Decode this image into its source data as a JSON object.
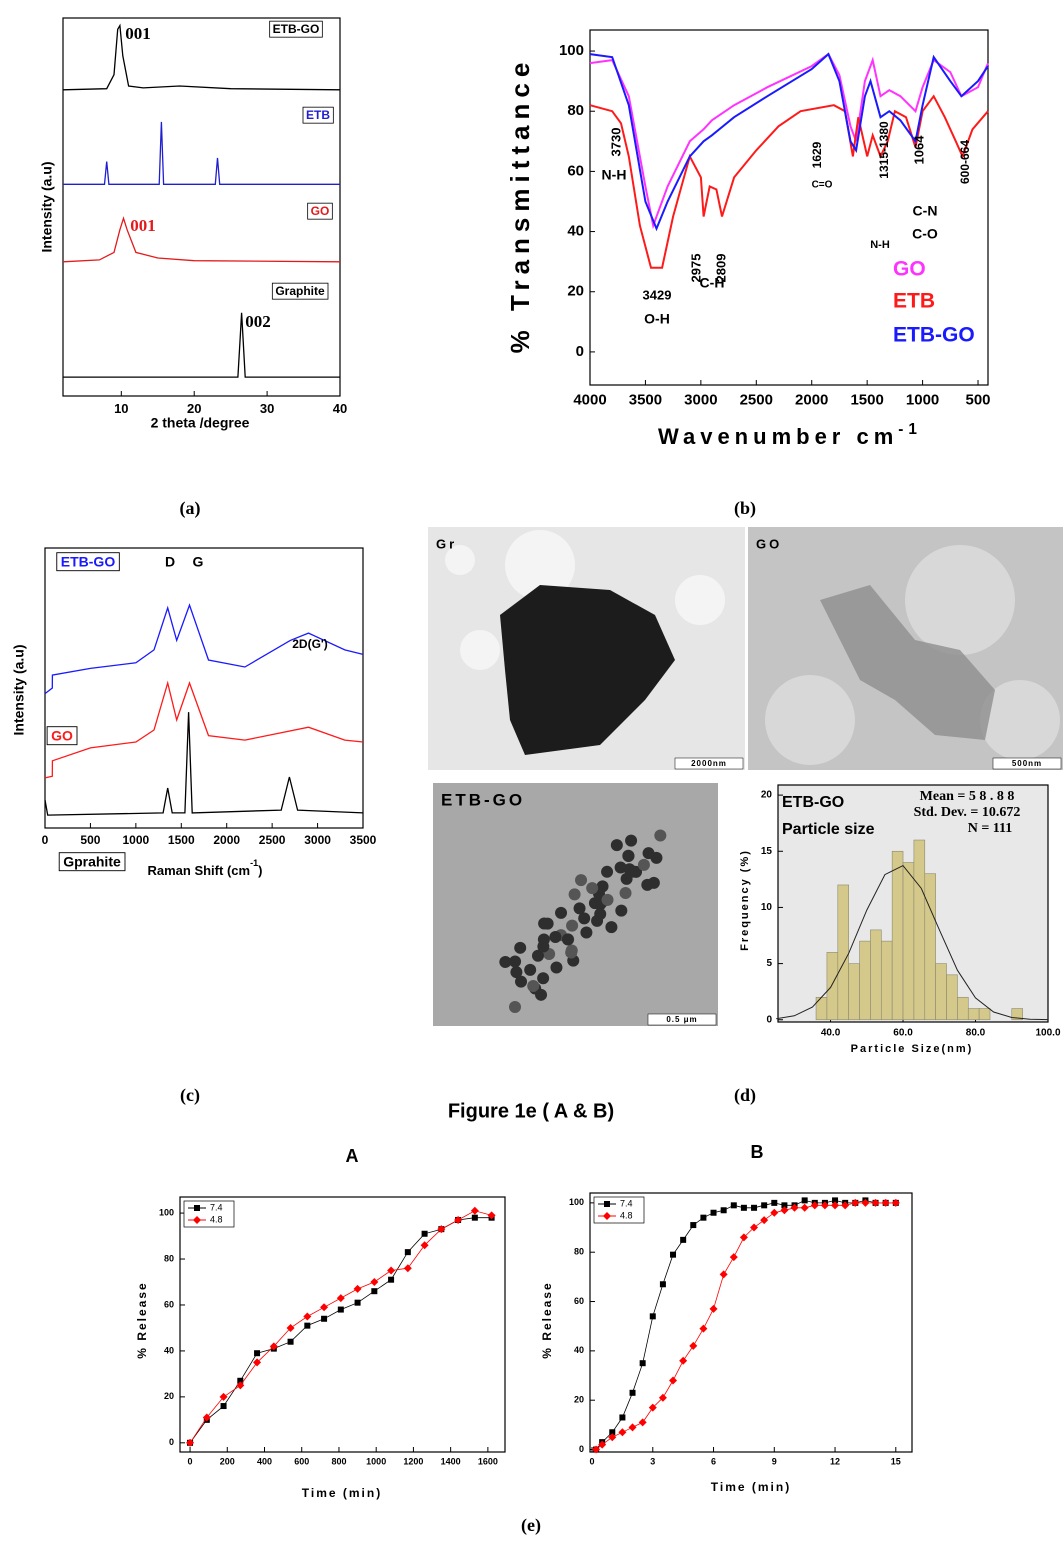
{
  "chart_data": [
    {
      "type": "line",
      "x_label": "2 theta /degree",
      "y_label": "Intensity (a.u)",
      "xlim": [
        2,
        40
      ],
      "ylim": [
        0,
        100
      ],
      "xticks": [
        10,
        20,
        30,
        40
      ],
      "series": [
        {
          "name": "ETB-GO",
          "color": "#000000",
          "x": [
            2,
            8,
            9,
            9.5,
            9.8,
            10.2,
            11,
            13,
            18,
            25,
            40
          ],
          "values": [
            81,
            81.3,
            85,
            97,
            98,
            90,
            82,
            81.5,
            82,
            81.3,
            81
          ]
        },
        {
          "name": "ETB",
          "color": "#1f1fd0",
          "x": [
            2,
            7.7,
            8,
            8.3,
            15.2,
            15.5,
            15.8,
            22.9,
            23.2,
            23.5,
            40
          ],
          "values": [
            56,
            56,
            62,
            56,
            56,
            72.5,
            56,
            56,
            63,
            56,
            56
          ]
        },
        {
          "name": "GO",
          "color": "#e31a1c",
          "x": [
            2,
            7,
            9,
            9.8,
            10.3,
            10.8,
            12,
            15,
            20,
            40
          ],
          "values": [
            35.5,
            36,
            38,
            44,
            47,
            44,
            38,
            36.5,
            35.8,
            35.5
          ]
        },
        {
          "name": "Graphite",
          "color": "#000000",
          "x": [
            2,
            26,
            26.3,
            26.5,
            26.7,
            27,
            40
          ],
          "values": [
            5,
            5,
            15,
            22,
            15,
            5,
            5
          ]
        }
      ],
      "annotations": [
        {
          "text": "001",
          "color": "#000000"
        },
        {
          "text": "001",
          "color": "#e31a1c"
        },
        {
          "text": "002",
          "color": "#000000"
        }
      ]
    },
    {
      "type": "line",
      "x_label": {
        "text": "Wavenumber cm",
        "sup": "-1"
      },
      "y_label": "% Transmittance",
      "xlim": [
        4000,
        410
      ],
      "ylim": [
        -11,
        107
      ],
      "xticks": [
        4000,
        3500,
        3000,
        2500,
        2000,
        1500,
        1000,
        500
      ],
      "yticks": [
        0,
        20,
        40,
        60,
        80,
        100
      ],
      "legend": "lower right",
      "series": [
        {
          "name": "GO",
          "color": "#ff33ff",
          "x": [
            4000,
            3800,
            3650,
            3500,
            3430,
            3300,
            3100,
            2975,
            2900,
            2700,
            2400,
            2000,
            1850,
            1750,
            1650,
            1600,
            1520,
            1450,
            1380,
            1300,
            1200,
            1064,
            1000,
            900,
            750,
            650,
            500,
            410
          ],
          "values": [
            96,
            97,
            85,
            55,
            42,
            55,
            70,
            74,
            77,
            82,
            88,
            95,
            99,
            92,
            75,
            70,
            90,
            97,
            85,
            87,
            85,
            80,
            88,
            97,
            93,
            85,
            88,
            96
          ]
        },
        {
          "name": "ETB",
          "color": "#ff1a1a",
          "x": [
            4000,
            3800,
            3720,
            3650,
            3550,
            3450,
            3350,
            3250,
            3100,
            3000,
            2975,
            2920,
            2860,
            2809,
            2700,
            2500,
            2300,
            2100,
            1800,
            1700,
            1629,
            1580,
            1500,
            1450,
            1380,
            1315,
            1250,
            1150,
            1064,
            1000,
            900,
            800,
            700,
            640,
            550,
            410
          ],
          "values": [
            82,
            80,
            76,
            65,
            42,
            28,
            28,
            45,
            65,
            58,
            45,
            55,
            54,
            45,
            58,
            67,
            75,
            80,
            82,
            80,
            65,
            78,
            65,
            72,
            65,
            70,
            80,
            78,
            68,
            80,
            85,
            78,
            70,
            65,
            74,
            80
          ]
        },
        {
          "name": "ETB-GO",
          "color": "#1a1aff",
          "x": [
            4000,
            3800,
            3650,
            3500,
            3400,
            3300,
            3100,
            2975,
            2900,
            2700,
            2400,
            2000,
            1850,
            1750,
            1650,
            1600,
            1520,
            1470,
            1380,
            1300,
            1200,
            1064,
            1000,
            900,
            750,
            650,
            500,
            410
          ],
          "values": [
            99,
            98,
            82,
            50,
            41,
            50,
            65,
            70,
            72,
            78,
            85,
            94,
            99,
            90,
            70,
            67,
            85,
            90,
            78,
            80,
            77,
            70,
            82,
            98,
            90,
            85,
            90,
            95
          ]
        }
      ],
      "annotations": [
        {
          "text": "3730"
        },
        {
          "text": "N-H"
        },
        {
          "text": "3429"
        },
        {
          "text": "O-H"
        },
        {
          "text": "2975"
        },
        {
          "text": "2809"
        },
        {
          "text": "C-H"
        },
        {
          "text": "1629"
        },
        {
          "text": "C=O"
        },
        {
          "text": "1315-1380"
        },
        {
          "text": "N-H"
        },
        {
          "text": "1064"
        },
        {
          "text": "C-N"
        },
        {
          "text": "C-O"
        },
        {
          "text": "600-664"
        }
      ]
    },
    {
      "type": "line",
      "x_label": {
        "text": "Raman Shift (cm",
        "sup": "-1",
        "tail": ")"
      },
      "y_label": "Intensity (a.u)",
      "xlim": [
        0,
        3500
      ],
      "ylim": [
        0,
        100
      ],
      "xticks": [
        0,
        500,
        1000,
        1500,
        2000,
        2500,
        3000,
        3500
      ],
      "series": [
        {
          "name": "ETB-GO",
          "color": "#1a1aff",
          "x": [
            0,
            80,
            81,
            500,
            1000,
            1200,
            1350,
            1450,
            1590,
            1800,
            2200,
            2700,
            2900,
            3300,
            3500
          ],
          "values": [
            48,
            50,
            54.6,
            57,
            59,
            63.6,
            78.6,
            67,
            79.6,
            60,
            57.5,
            67,
            69.6,
            63.6,
            62
          ]
        },
        {
          "name": "GO",
          "color": "#ff1a1a",
          "x": [
            0,
            80,
            81,
            500,
            1000,
            1200,
            1350,
            1450,
            1590,
            1800,
            2200,
            2900,
            3300,
            3500
          ],
          "values": [
            17.9,
            18.5,
            24,
            28.6,
            30.7,
            35,
            51.8,
            38.6,
            51.8,
            33,
            31.4,
            36,
            31.4,
            30.7
          ]
        },
        {
          "name": "Gprahite",
          "color": "#000000",
          "x": [
            0,
            30,
            1300,
            1350,
            1400,
            1540,
            1580,
            1620,
            2600,
            2690,
            2780,
            3500
          ],
          "values": [
            10,
            4.6,
            5.4,
            14.3,
            5.4,
            5.4,
            41.4,
            5.4,
            6.4,
            18.2,
            6.4,
            5.4
          ]
        }
      ],
      "annotations": [
        {
          "text": "D"
        },
        {
          "text": "G"
        },
        {
          "text": "2D(G')"
        }
      ]
    },
    {
      "type": "histogram",
      "title": "ETB-GO",
      "subtitle": "Particle size",
      "x_label": "Particle Size(nm)",
      "y_label": "Frequency (%)",
      "stats": [
        "Mean = 5 8 . 8 8",
        "Std. Dev. = 10.672",
        "N = 111"
      ],
      "xlim": [
        25.5,
        100
      ],
      "ylim": [
        -0.2,
        20.9
      ],
      "xticks": [
        {
          "value": 40,
          "label": "40.0"
        },
        {
          "value": 60,
          "label": "60.0"
        },
        {
          "value": 80,
          "label": "80.0"
        },
        {
          "value": 100,
          "label": "100.0"
        }
      ],
      "yticks": [
        0,
        5,
        10,
        15,
        20
      ],
      "color": "#d4c88a",
      "bins": [
        36,
        39,
        42,
        45,
        48,
        51,
        54,
        57,
        60,
        63,
        66,
        69,
        72,
        75,
        78,
        81,
        84,
        87,
        90,
        93
      ],
      "counts": [
        2,
        6,
        12,
        5,
        7,
        8,
        7,
        15,
        14,
        16,
        13,
        5,
        4,
        2,
        1,
        1,
        0,
        0,
        1
      ],
      "fit": {
        "x": [
          25,
          30,
          35,
          40,
          45,
          50,
          55,
          60,
          65,
          70,
          75,
          80,
          85,
          90,
          95,
          100
        ],
        "values": [
          0.09,
          0.35,
          1.13,
          2.88,
          5.92,
          9.76,
          12.92,
          13.72,
          11.71,
          8.02,
          4.41,
          1.95,
          0.69,
          0.2,
          0.05,
          0.01
        ]
      }
    },
    {
      "type": "line",
      "title": "A",
      "x_label": "Time (min)",
      "y_label": "% Release",
      "xlim": [
        -54,
        1692
      ],
      "ylim": [
        -4,
        107
      ],
      "xticks": [
        0,
        200,
        400,
        600,
        800,
        1000,
        1200,
        1400,
        1600
      ],
      "yticks": [
        0,
        20,
        40,
        60,
        80,
        100
      ],
      "legend": "upper left",
      "series": [
        {
          "name": "7.4",
          "color": "#000000",
          "marker": "square",
          "x": [
            0,
            90,
            180,
            270,
            360,
            450,
            540,
            630,
            720,
            810,
            900,
            990,
            1080,
            1170,
            1260,
            1350,
            1440,
            1530,
            1620
          ],
          "values": [
            0,
            10,
            16,
            27,
            39,
            41,
            44,
            51,
            54,
            58,
            61,
            66,
            71,
            83,
            91,
            93,
            97,
            98,
            98
          ]
        },
        {
          "name": "4.8",
          "color": "#ff0000",
          "marker": "diamond",
          "x": [
            0,
            90,
            180,
            270,
            360,
            450,
            540,
            630,
            720,
            810,
            900,
            990,
            1080,
            1170,
            1260,
            1350,
            1440,
            1530,
            1620
          ],
          "values": [
            0,
            11,
            20,
            25,
            35,
            42,
            50,
            55,
            59,
            63,
            67,
            70,
            75,
            76,
            86,
            93,
            97,
            101,
            99
          ]
        }
      ]
    },
    {
      "type": "line",
      "title": "B",
      "x_label": "Time (min)",
      "y_label": "% Release",
      "xlim": [
        -0.1,
        15.8
      ],
      "ylim": [
        -1,
        104
      ],
      "xticks": [
        0,
        3,
        6,
        9,
        12,
        15
      ],
      "yticks": [
        0,
        20,
        40,
        60,
        80,
        100
      ],
      "legend": "upper left",
      "series": [
        {
          "name": "7.4",
          "color": "#000000",
          "marker": "square",
          "x": [
            0.2,
            0.5,
            1,
            1.5,
            2,
            2.5,
            3,
            3.5,
            4,
            4.5,
            5,
            5.5,
            6,
            6.5,
            7,
            7.5,
            8,
            8.5,
            9,
            9.5,
            10,
            10.5,
            11,
            11.5,
            12,
            12.5,
            13,
            13.5,
            14,
            14.5,
            15
          ],
          "values": [
            0,
            3,
            7,
            13,
            23,
            35,
            54,
            67,
            79,
            85,
            91,
            94,
            96,
            97,
            99,
            98,
            98,
            99,
            100,
            99,
            99,
            101,
            100,
            100,
            101,
            100,
            100,
            101,
            100,
            100,
            100
          ]
        },
        {
          "name": "4.8",
          "color": "#ff0000",
          "marker": "diamond",
          "x": [
            0.2,
            0.5,
            1,
            1.5,
            2,
            2.5,
            3,
            3.5,
            4,
            4.5,
            5,
            5.5,
            6,
            6.5,
            7,
            7.5,
            8,
            8.5,
            9,
            9.5,
            10,
            10.5,
            11,
            11.5,
            12,
            12.5,
            13,
            13.5,
            14,
            14.5,
            15
          ],
          "values": [
            0,
            2,
            5,
            7,
            9,
            11,
            17,
            21,
            28,
            36,
            42,
            49,
            57,
            71,
            78,
            86,
            90,
            93,
            96,
            97,
            98,
            98,
            99,
            99,
            99,
            99,
            100,
            100,
            100,
            100,
            100
          ]
        }
      ]
    }
  ],
  "images": [
    {
      "label": "Gr",
      "scale": "2000nm"
    },
    {
      "label": "GO",
      "scale": "500nm"
    },
    {
      "label": "ETB-GO",
      "scale": "0.5 μm"
    }
  ],
  "captions": [
    "(a)",
    "(b)",
    "(c)",
    "(d)",
    "(e)"
  ],
  "figure_title": "Figure 1e ( A & B)"
}
